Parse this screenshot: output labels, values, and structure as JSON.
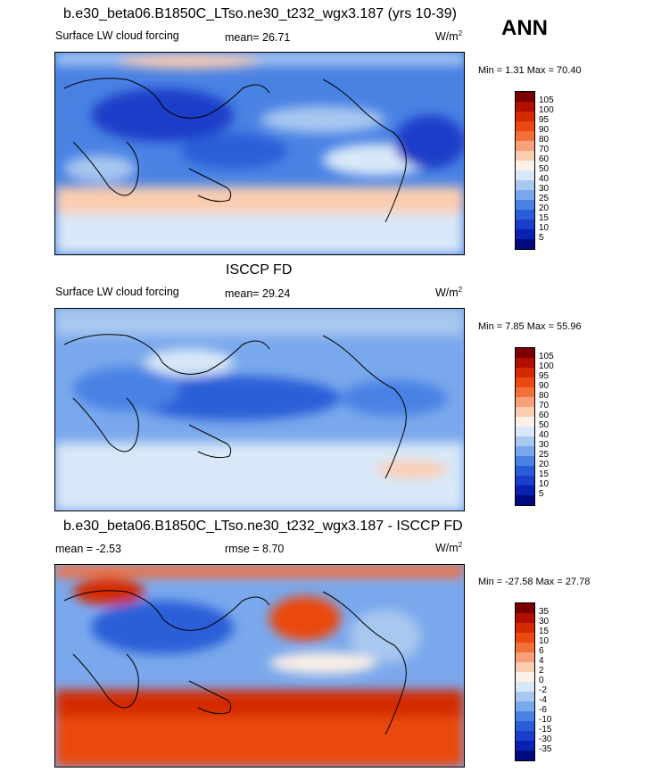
{
  "season": "ANN",
  "panels": [
    {
      "title": "b.e30_beta06.B1850C_LTso.ne30_t232_wgx3.187 (yrs 10-39)",
      "left_label": "Surface LW cloud forcing",
      "stat1": "mean=  26.71",
      "stat2": "",
      "units": "W/m",
      "units_sup": "2",
      "minmax": "Min =   1.31 Max =  70.40"
    },
    {
      "title": "ISCCP FD",
      "left_label": "Surface LW cloud forcing",
      "stat1": "mean=  29.24",
      "stat2": "",
      "units": "W/m",
      "units_sup": "2",
      "minmax": "Min =   7.85 Max =  55.96"
    },
    {
      "title": "b.e30_beta06.B1850C_LTso.ne30_t232_wgx3.187 - ISCCP FD",
      "left_label": "mean =  -2.53",
      "stat1": "rmse =    8.70",
      "stat2": "",
      "units": "W/m",
      "units_sup": "2",
      "minmax": "Min = -27.58 Max =  27.78"
    }
  ],
  "colorbar_abs": {
    "levels": [
      "105",
      "100",
      "95",
      "90",
      "80",
      "70",
      "60",
      "50",
      "40",
      "30",
      "25",
      "20",
      "15",
      "10",
      "5"
    ],
    "colors": [
      "#7a0000",
      "#b01000",
      "#d42a00",
      "#ea4a10",
      "#f4703a",
      "#f8a07a",
      "#fbcdb0",
      "#fdf0e6",
      "#d8e8f8",
      "#a8c8f0",
      "#7aa8ec",
      "#4a82e4",
      "#2a5ed8",
      "#1a3ec8",
      "#0a20b0",
      "#000a80"
    ]
  },
  "colorbar_diff": {
    "levels": [
      "35",
      "30",
      "15",
      "10",
      "6",
      "4",
      "2",
      "0",
      "-2",
      "-4",
      "-6",
      "-10",
      "-15",
      "-30",
      "-35"
    ],
    "colors": [
      "#7a0000",
      "#b01000",
      "#d42a00",
      "#ea4a10",
      "#f4703a",
      "#f8a07a",
      "#fbcdb0",
      "#fdf0e6",
      "#d8e8f8",
      "#a8c8f0",
      "#7aa8ec",
      "#4a82e4",
      "#2a5ed8",
      "#1a3ec8",
      "#0a20b0",
      "#000a80"
    ]
  }
}
